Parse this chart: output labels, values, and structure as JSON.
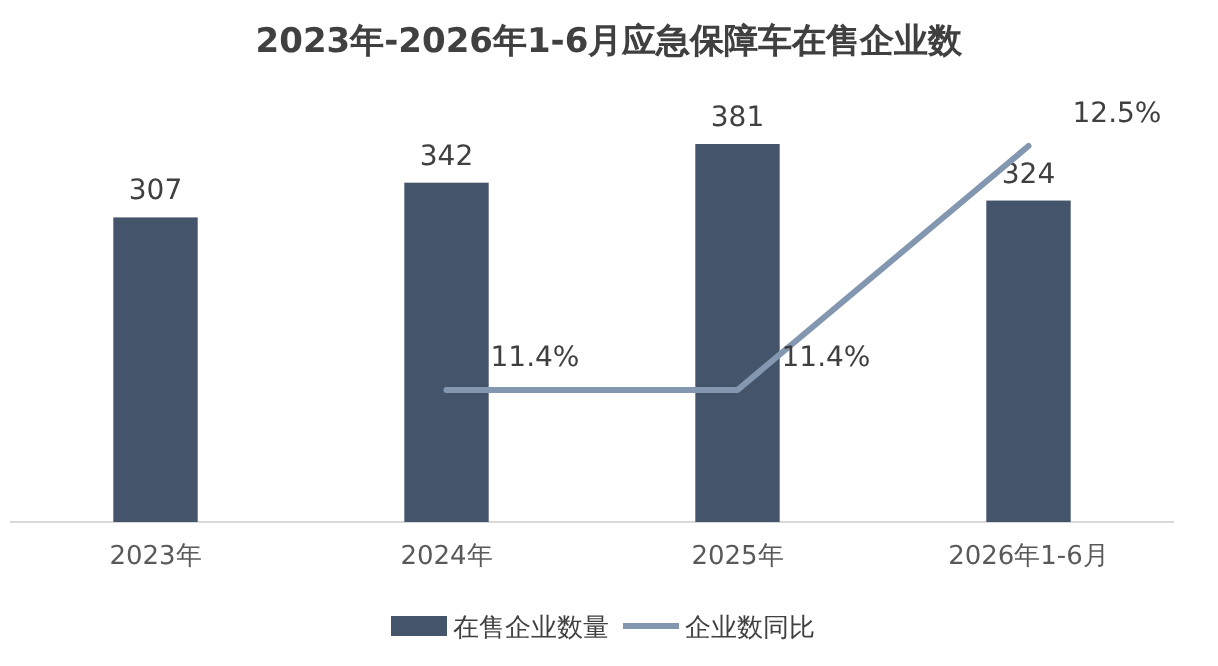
{
  "chart_data": {
    "type": "bar",
    "title": "2023年-2026年1-6月应急保障车在售企业数",
    "categories": [
      "2023年",
      "2024年",
      "2025年",
      "2026年1-6月"
    ],
    "series": [
      {
        "name": "在售企业数量",
        "color": "#44546a",
        "values": [
          307,
          342,
          381,
          324
        ]
      },
      {
        "name": "企业数同比",
        "type": "line",
        "axis": "y2",
        "color": "#8497b0",
        "values": [
          null,
          11.4,
          11.4,
          12.5
        ],
        "value_labels": [
          null,
          "11.4%",
          "11.4%",
          "12.5%"
        ]
      }
    ],
    "data_labels": true,
    "legend": "bottom",
    "tick_labels": "x"
  }
}
